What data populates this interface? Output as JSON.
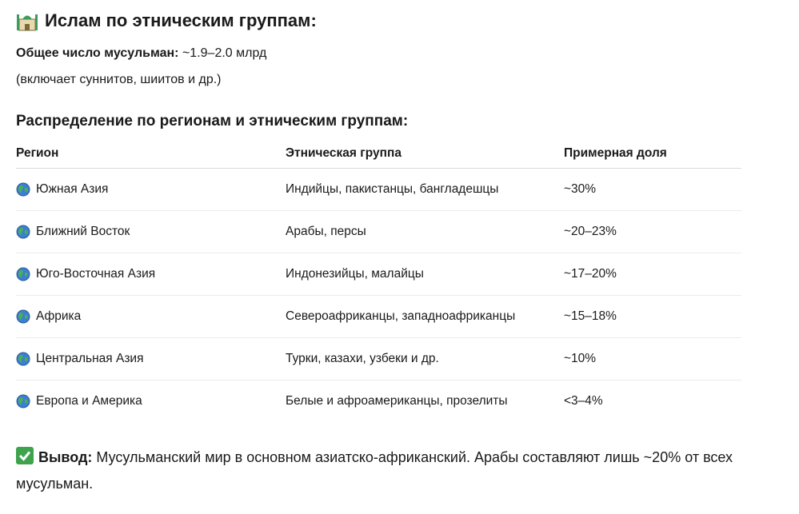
{
  "header": {
    "title": "Ислам по этническим группам:"
  },
  "summary": {
    "label": "Общее число мусульман:",
    "value": "~1.9–2.0 млрд",
    "note": "(включает суннитов, шиитов и др.)"
  },
  "section_title": "Распределение по регионам и этническим группам:",
  "table": {
    "columns": [
      "Регион",
      "Этническая группа",
      "Примерная доля"
    ],
    "rows": [
      [
        "Южная Азия",
        "Индийцы, пакистанцы, бангладешцы",
        "~30%"
      ],
      [
        "Ближний Восток",
        "Арабы, персы",
        "~20–23%"
      ],
      [
        "Юго-Восточная Азия",
        "Индонезийцы, малайцы",
        "~17–20%"
      ],
      [
        "Африка",
        "Североафриканцы, западноафриканцы",
        "~15–18%"
      ],
      [
        "Центральная Азия",
        "Турки, казахи, узбеки и др.",
        "~10%"
      ],
      [
        "Европа и Америка",
        "Белые и афроамериканцы, прозелиты",
        "<3–4%"
      ]
    ]
  },
  "conclusion": {
    "label": "Вывод:",
    "text": "Мусульманский мир в основном азиатско-африканский. Арабы составляют лишь ~20% от всех мусульман."
  }
}
